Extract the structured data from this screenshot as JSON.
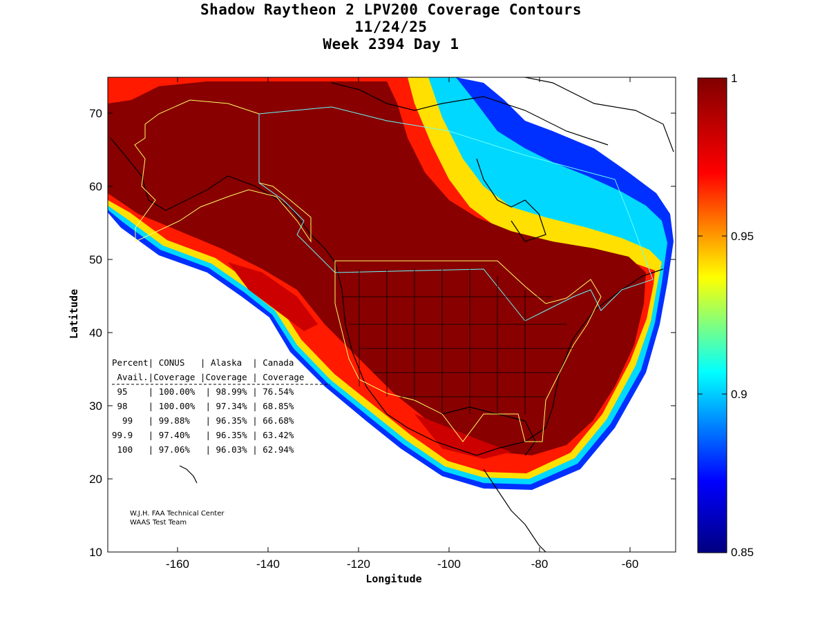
{
  "title": {
    "line1": "Shadow Raytheon 2 LPV200 Coverage Contours",
    "line2": "11/24/25",
    "line3": "Week 2394 Day 1"
  },
  "axes": {
    "xlabel": "Longitude",
    "ylabel": "Latitude",
    "x_ticks": [
      "-160",
      "-140",
      "-120",
      "-100",
      "-80",
      "-60"
    ],
    "y_ticks": [
      "10",
      "20",
      "30",
      "40",
      "50",
      "60",
      "70"
    ]
  },
  "colorbar": {
    "labels": [
      "1",
      "0.95",
      "0.9",
      "0.85"
    ],
    "colors": [
      "#800000",
      "#ff0000",
      "#ffff00",
      "#00ffff",
      "#0000ff",
      "#000080"
    ]
  },
  "table": {
    "header1": "Percent| CONUS   | Alaska  | Canada",
    "header2": " Avail.|Coverage |Coverage | Coverage",
    "rows": [
      " 95    | 100.00%  | 98.99% | 76.54%",
      " 98    | 100.00%  | 97.34% | 68.85%",
      "  99   | 99.88%   | 96.35% | 66.68%",
      "99.9   | 97.40%   | 96.35% | 63.42%",
      " 100   | 97.06%   | 96.03% | 62.94%"
    ]
  },
  "credit": {
    "line1": "W.J.H. FAA Technical Center",
    "line2": "WAAS Test Team"
  },
  "chart_data": {
    "type": "heatmap",
    "title": "Shadow Raytheon 2 LPV200 Coverage Contours",
    "subtitle": "11/24/25 Week 2394 Day 1",
    "xlabel": "Longitude",
    "ylabel": "Latitude",
    "xlim": [
      -175,
      -50
    ],
    "ylim": [
      10,
      75
    ],
    "color_range": [
      0.85,
      1
    ],
    "table_columns": [
      "Percent Avail.",
      "CONUS Coverage",
      "Alaska Coverage",
      "Canada Coverage"
    ],
    "table_values": [
      [
        "95",
        "100.00%",
        "98.99%",
        "76.54%"
      ],
      [
        "98",
        "100.00%",
        "97.34%",
        "68.85%"
      ],
      [
        "99",
        "99.88%",
        "96.35%",
        "66.68%"
      ],
      [
        "99.9",
        "97.40%",
        "96.35%",
        "63.42%"
      ],
      [
        "100",
        "97.06%",
        "96.03%",
        "62.94%"
      ]
    ]
  }
}
